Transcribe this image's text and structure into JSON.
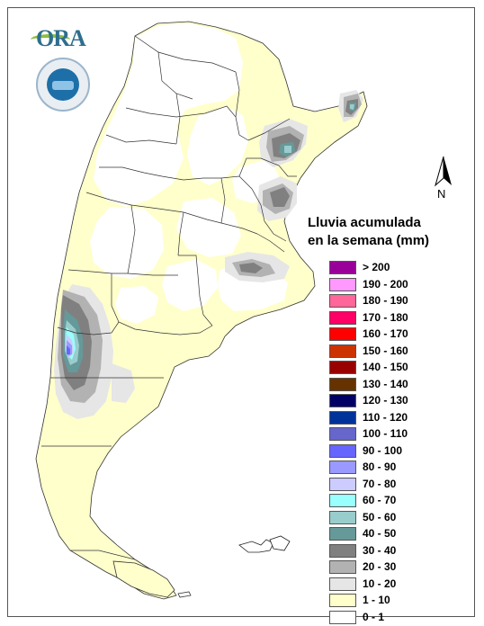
{
  "legend": {
    "title_line1": "Lluvia acumulada",
    "title_line2": "en la semana (mm)",
    "items": [
      {
        "label": "> 200",
        "color": "#990099"
      },
      {
        "label": "190 - 200",
        "color": "#ff99ff"
      },
      {
        "label": "180 - 190",
        "color": "#ff6699"
      },
      {
        "label": "170 - 180",
        "color": "#ff0066"
      },
      {
        "label": "160 - 170",
        "color": "#ff0000"
      },
      {
        "label": "150 - 160",
        "color": "#cc3300"
      },
      {
        "label": "140 - 150",
        "color": "#990000"
      },
      {
        "label": "130 - 140",
        "color": "#663300"
      },
      {
        "label": "120 - 130",
        "color": "#000066"
      },
      {
        "label": "110 - 120",
        "color": "#003399"
      },
      {
        "label": "100 - 110",
        "color": "#6666cc"
      },
      {
        "label": "90 - 100",
        "color": "#6666ff"
      },
      {
        "label": "80 - 90",
        "color": "#9999ff"
      },
      {
        "label": "70 - 80",
        "color": "#ccccff"
      },
      {
        "label": "60 - 70",
        "color": "#99ffff"
      },
      {
        "label": "50 - 60",
        "color": "#99cccc"
      },
      {
        "label": "40 - 50",
        "color": "#669999"
      },
      {
        "label": "30 - 40",
        "color": "#808080"
      },
      {
        "label": "20 - 30",
        "color": "#b2b2b2"
      },
      {
        "label": "10 - 20",
        "color": "#e6e6e6"
      },
      {
        "label": "1 - 10",
        "color": "#ffffcc"
      },
      {
        "label": "0 - 1",
        "color": "#ffffff"
      }
    ]
  },
  "logo": {
    "text": "ORA"
  },
  "north_arrow": {
    "label": "N"
  }
}
